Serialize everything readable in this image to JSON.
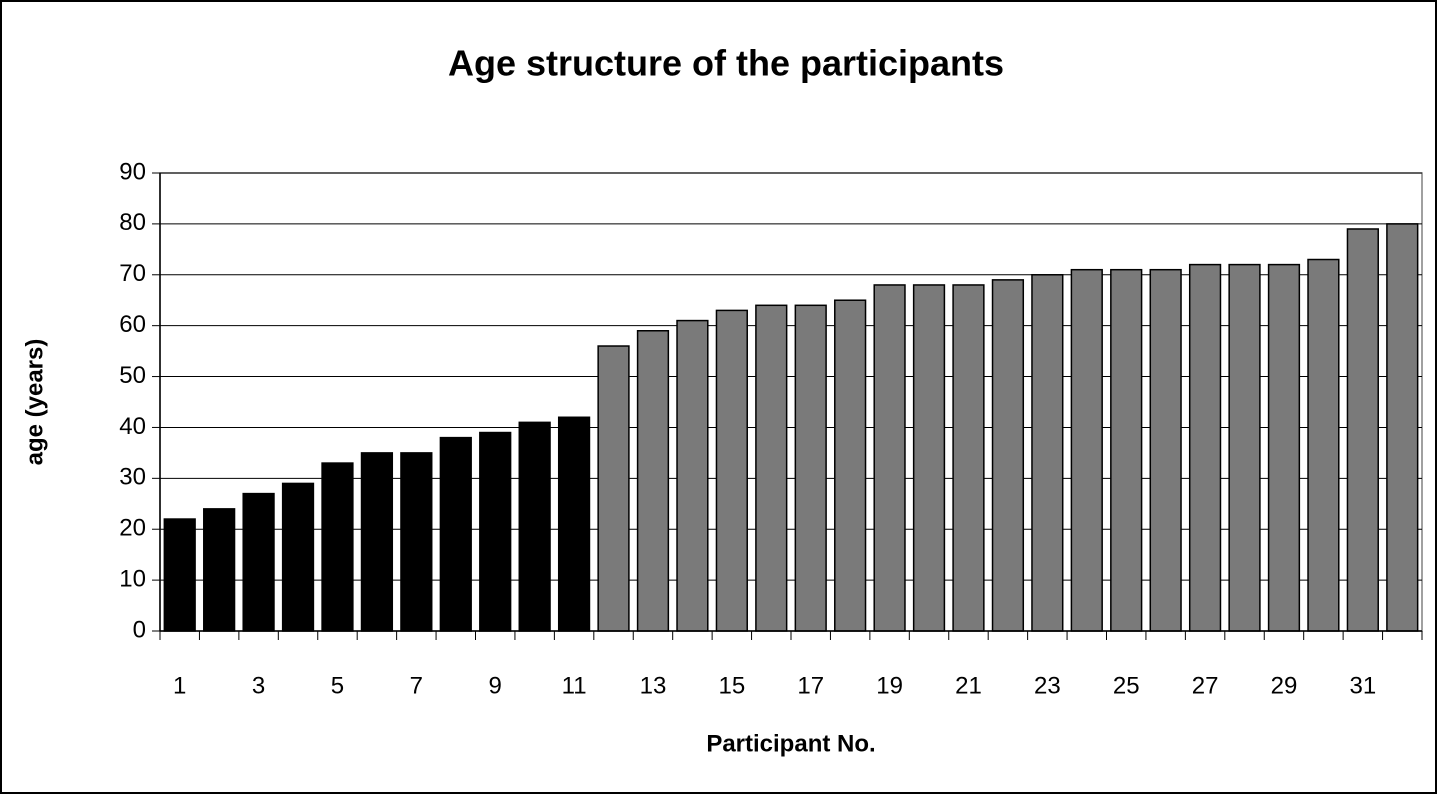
{
  "chart_data": {
    "type": "bar",
    "title": "Age structure of the participants",
    "x_label": "Participant No.",
    "y_label": "age (years)",
    "categories": [
      "1",
      null,
      "3",
      null,
      "5",
      null,
      "7",
      null,
      "9",
      null,
      "11",
      null,
      "13",
      null,
      "15",
      null,
      "17",
      null,
      "19",
      null,
      "21",
      null,
      "23",
      null,
      "25",
      null,
      "27",
      null,
      "29",
      null,
      "31",
      null
    ],
    "values": [
      22,
      24,
      27,
      29,
      33,
      35,
      35,
      38,
      39,
      41,
      42,
      56,
      59,
      61,
      63,
      64,
      64,
      65,
      68,
      68,
      68,
      69,
      70,
      71,
      71,
      71,
      72,
      72,
      72,
      73,
      79,
      80
    ],
    "colors": [
      "#000000",
      "#000000",
      "#000000",
      "#000000",
      "#000000",
      "#000000",
      "#000000",
      "#000000",
      "#000000",
      "#000000",
      "#000000",
      "#7a7a7a",
      "#7a7a7a",
      "#7a7a7a",
      "#7a7a7a",
      "#7a7a7a",
      "#7a7a7a",
      "#7a7a7a",
      "#7a7a7a",
      "#7a7a7a",
      "#7a7a7a",
      "#7a7a7a",
      "#7a7a7a",
      "#7a7a7a",
      "#7a7a7a",
      "#7a7a7a",
      "#7a7a7a",
      "#7a7a7a",
      "#7a7a7a",
      "#7a7a7a",
      "#7a7a7a",
      "#7a7a7a"
    ],
    "ylim": [
      0,
      90
    ],
    "yticks": [
      0,
      10,
      20,
      30,
      40,
      50,
      60,
      70,
      80,
      90
    ],
    "grid": true
  }
}
